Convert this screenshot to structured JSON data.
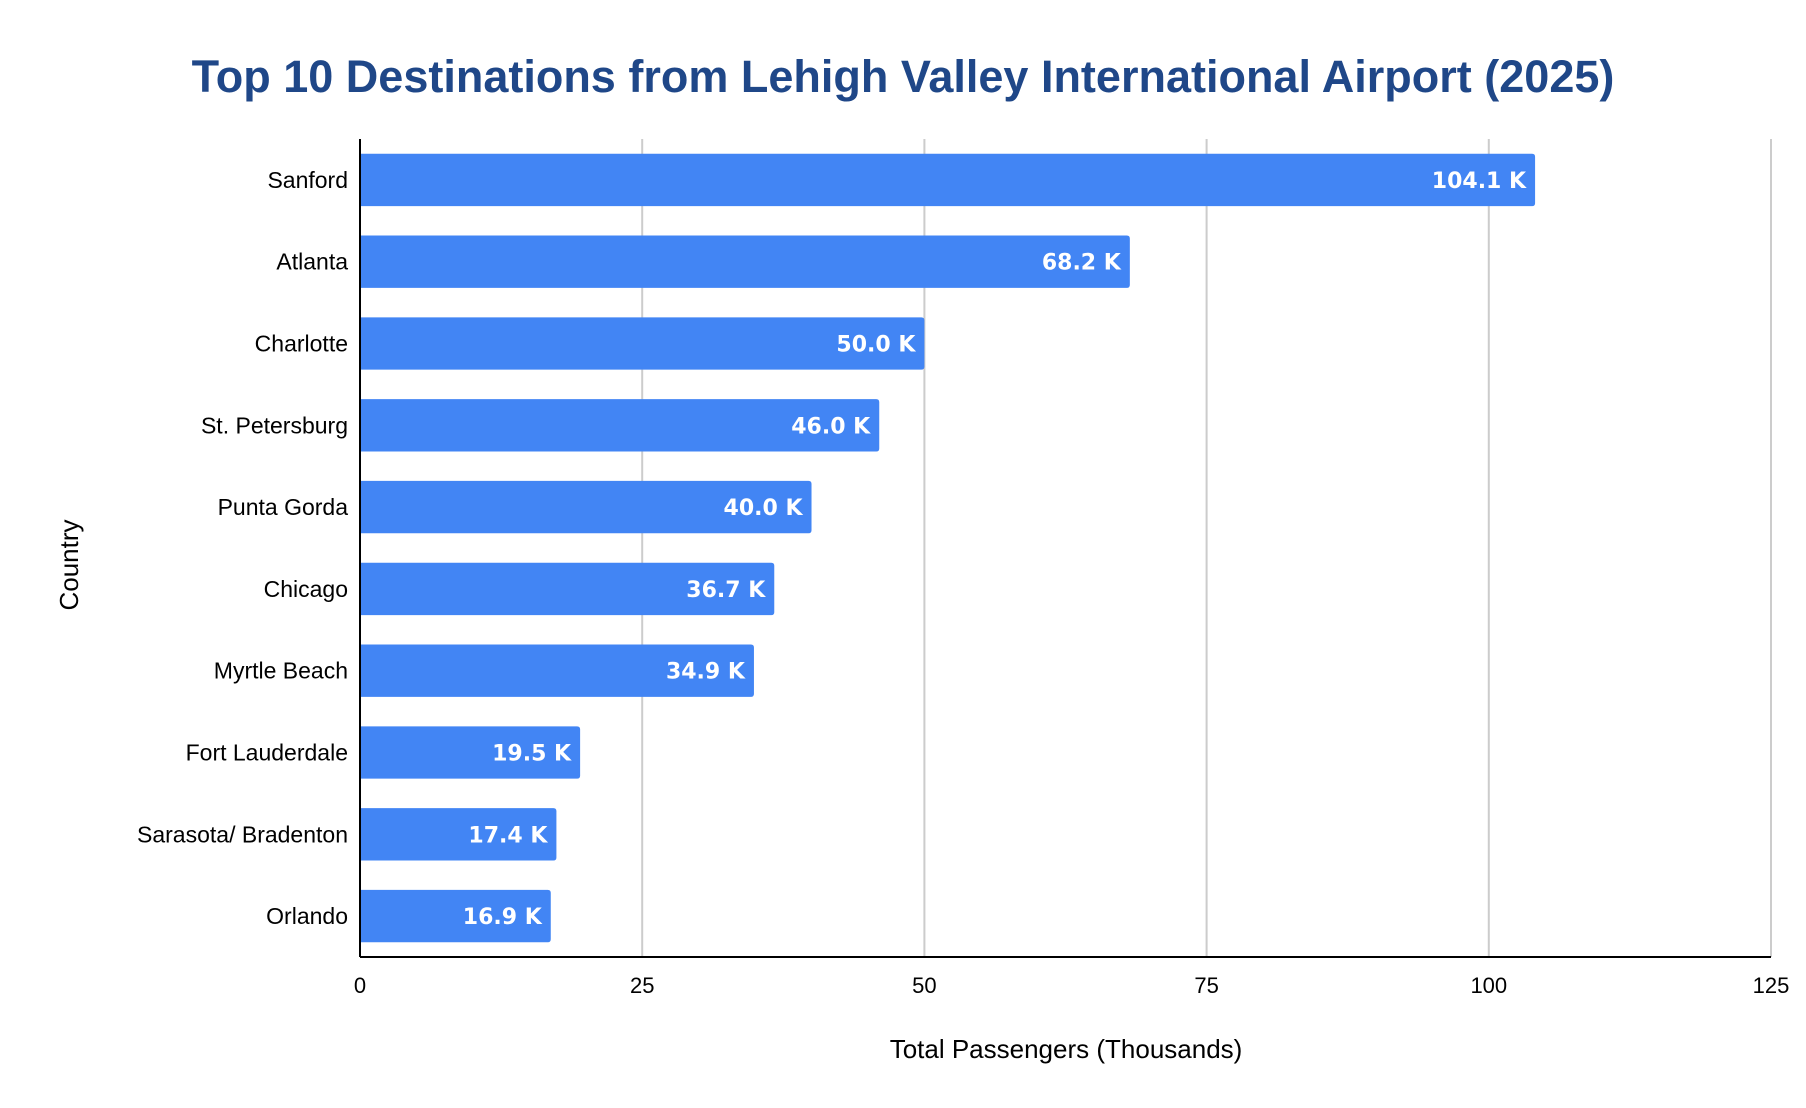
{
  "chart_data": {
    "type": "bar",
    "orientation": "horizontal",
    "title": "Top 10 Destinations from Lehigh Valley International Airport (2025)",
    "xlabel": "Total Passengers (Thousands)",
    "ylabel": "Country",
    "categories": [
      "Sanford",
      "Atlanta",
      "Charlotte",
      "St. Petersburg",
      "Punta Gorda",
      "Chicago",
      "Myrtle Beach",
      "Fort Lauderdale",
      "Sarasota/ Bradenton",
      "Orlando"
    ],
    "values": [
      104.1,
      68.2,
      50.0,
      46.0,
      40.0,
      36.7,
      34.9,
      19.5,
      17.4,
      16.9
    ],
    "data_labels": [
      "104.1 K",
      "68.2 K",
      "50.0 K",
      "46.0 K",
      "40.0 K",
      "36.7 K",
      "34.9 K",
      "19.5 K",
      "17.4 K",
      "16.9 K"
    ],
    "xlim": [
      0,
      125
    ],
    "xticks": [
      0,
      25,
      50,
      75,
      100,
      125
    ],
    "xtick_labels": [
      "0",
      "25",
      "50",
      "75",
      "100",
      "125"
    ],
    "grid": "vertical",
    "legend": "none",
    "colors": {
      "bar": "#4285f4",
      "title": "#1f4788",
      "grid": "#cccccc",
      "axis": "#000000",
      "bar_label": "#ffffff"
    }
  }
}
